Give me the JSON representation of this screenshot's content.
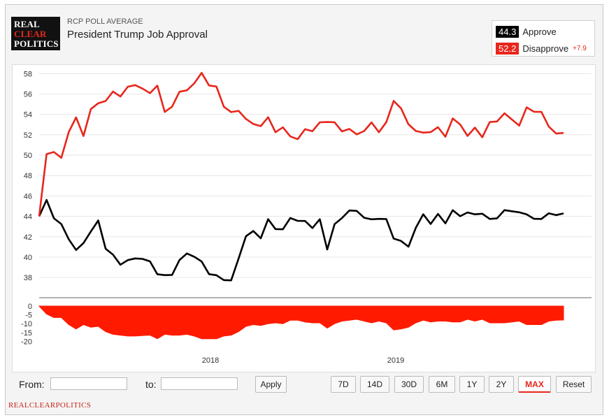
{
  "header": {
    "logo_lines": [
      "REAL",
      "CLEAR",
      "POLITICS"
    ],
    "source_label": "RCP POLL AVERAGE",
    "title": "President Trump Job Approval"
  },
  "legend": {
    "approve": {
      "value": "44.3",
      "name": "Approve",
      "color": "#000000"
    },
    "disapprove": {
      "value": "52.2",
      "name": "Disapprove",
      "spread": "+7.9",
      "color": "#e8261c"
    }
  },
  "chart_data": {
    "type": "line",
    "x_ticks": [
      "2018",
      "2019"
    ],
    "y_ticks": [
      38,
      40,
      42,
      44,
      46,
      48,
      50,
      52,
      54,
      56,
      58
    ],
    "ylim": [
      36.5,
      58.5
    ],
    "series": [
      {
        "name": "Approve",
        "color": "#000000",
        "values": [
          44.0,
          45.5,
          44.0,
          43.0,
          42.0,
          40.5,
          41.5,
          42.5,
          43.5,
          41.0,
          40.0,
          39.5,
          39.5,
          40.0,
          39.8,
          39.5,
          38.5,
          38.0,
          38.5,
          39.5,
          40.5,
          40.0,
          39.5,
          38.5,
          38.0,
          38.0,
          37.5,
          40.0,
          42.0,
          42.5,
          42.0,
          43.5,
          43.0,
          42.5,
          44.0,
          43.5,
          43.5,
          43.0,
          43.5,
          41.0,
          43.0,
          44.0,
          44.5,
          44.5,
          44.0,
          43.5,
          44.0,
          43.5,
          42.0,
          41.5,
          41.0,
          43.0,
          44.0,
          43.5,
          44.0,
          43.5,
          44.5,
          44.0,
          44.5,
          44.0,
          44.5,
          43.5,
          44.0,
          44.5,
          44.5,
          44.5,
          44.0,
          44.0,
          43.5,
          44.5,
          44.0,
          44.3
        ]
      },
      {
        "name": "Disapprove",
        "color": "#e8261c",
        "values": [
          44.0,
          50.0,
          50.5,
          49.5,
          52.5,
          53.5,
          52.0,
          54.5,
          55.0,
          55.5,
          56.0,
          56.0,
          56.5,
          57.0,
          56.5,
          56.0,
          57.0,
          54.0,
          55.0,
          56.0,
          56.5,
          57.0,
          58.0,
          57.0,
          56.5,
          55.0,
          54.0,
          54.5,
          53.5,
          53.0,
          53.0,
          53.5,
          52.5,
          52.5,
          52.0,
          51.5,
          52.5,
          52.5,
          53.0,
          53.5,
          53.0,
          52.5,
          52.5,
          52.0,
          52.5,
          53.0,
          52.5,
          53.0,
          55.5,
          54.5,
          53.0,
          52.5,
          52.0,
          52.5,
          52.5,
          52.0,
          53.5,
          53.0,
          52.0,
          52.5,
          52.0,
          53.0,
          53.5,
          54.0,
          53.5,
          53.0,
          54.5,
          54.5,
          54.0,
          53.0,
          52.0,
          52.2
        ]
      }
    ],
    "spread": {
      "name": "Spread",
      "color": "#ff1a00",
      "y_ticks": [
        0,
        -5,
        -10,
        -15,
        -20
      ],
      "ylim": [
        -21,
        0
      ]
    }
  },
  "controls": {
    "from_label": "From:",
    "to_label": "to:",
    "apply_label": "Apply",
    "ranges": [
      "7D",
      "14D",
      "30D",
      "6M",
      "1Y",
      "2Y",
      "MAX",
      "Reset"
    ],
    "active_range": "MAX"
  },
  "footer": {
    "text": "REALCLEARPOLITICS"
  }
}
